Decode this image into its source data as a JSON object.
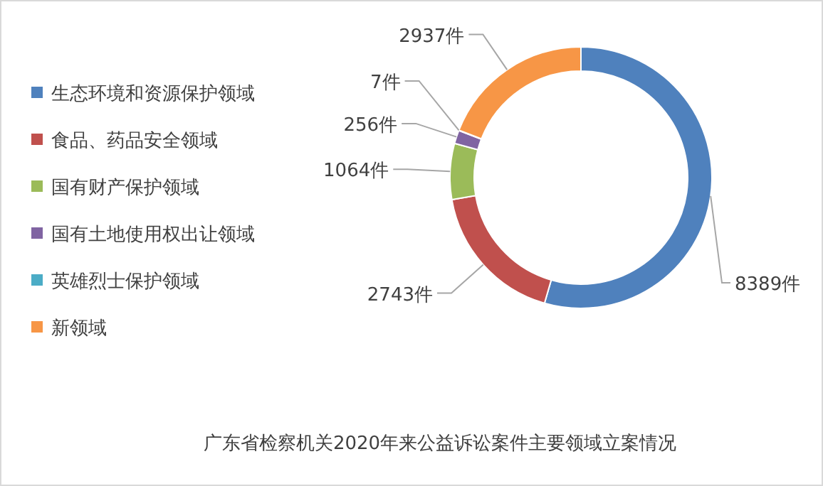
{
  "chart_data": {
    "type": "donut",
    "title": "广东省检察机关2020年来公益诉讼案件主要领域立案情况",
    "categories": [
      "生态环境和资源保护领域",
      "食品、药品安全领域",
      "国有财产保护领域",
      "国有土地使用权出让领域",
      "英雄烈士保护领域",
      "新领域"
    ],
    "values": [
      8389,
      2743,
      1064,
      256,
      7,
      2937
    ],
    "value_labels": [
      "8389件",
      "2743件",
      "1064件",
      "256件",
      "7件",
      "2937件"
    ],
    "colors": [
      "#4f81bd",
      "#c0504d",
      "#9bbb59",
      "#8064a2",
      "#4bacc6",
      "#f79646"
    ],
    "legend": "left"
  }
}
